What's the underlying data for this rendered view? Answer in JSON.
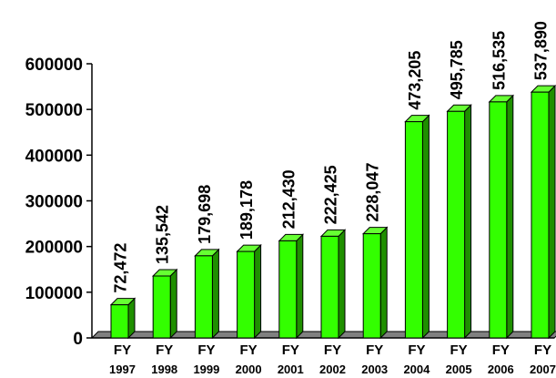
{
  "chart_data": {
    "type": "bar",
    "title": "",
    "xlabel": "",
    "ylabel": "",
    "categories": [
      {
        "line1": "FY",
        "line2": "1997"
      },
      {
        "line1": "FY",
        "line2": "1998"
      },
      {
        "line1": "FY",
        "line2": "1999"
      },
      {
        "line1": "FY",
        "line2": "2000"
      },
      {
        "line1": "FY",
        "line2": "2001"
      },
      {
        "line1": "FY",
        "line2": "2002"
      },
      {
        "line1": "FY",
        "line2": "2003"
      },
      {
        "line1": "FY",
        "line2": "2004"
      },
      {
        "line1": "FY",
        "line2": "2005"
      },
      {
        "line1": "FY",
        "line2": "2006"
      },
      {
        "line1": "FY",
        "line2": "2007"
      }
    ],
    "values": [
      72472,
      135542,
      179698,
      189178,
      212430,
      222425,
      228047,
      473205,
      495785,
      516535,
      537890
    ],
    "value_labels": [
      "72,472",
      "135,542",
      "179,698",
      "189,178",
      "212,430",
      "222,425",
      "228,047",
      "473,205",
      "495,785",
      "516,535",
      "537,890"
    ],
    "ylim": [
      0,
      600000
    ],
    "y_ticks": [
      0,
      100000,
      200000,
      300000,
      400000,
      500000,
      600000
    ],
    "y_tick_labels": [
      "0",
      "100000",
      "200000",
      "300000",
      "400000",
      "500000",
      "600000"
    ],
    "grid": false,
    "legend": "none",
    "style": "3d",
    "colors": {
      "bar_front": "#33ff00",
      "bar_top": "#66ff33",
      "bar_side": "#1f8f00",
      "outline": "#000000",
      "floor": "#808080"
    }
  }
}
